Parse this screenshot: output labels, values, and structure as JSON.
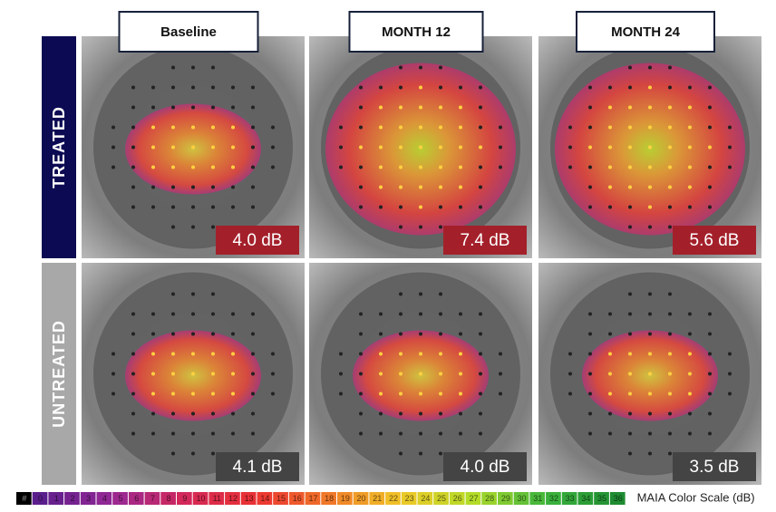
{
  "columns": [
    "Baseline",
    "MONTH 12",
    "MONTH 24"
  ],
  "rows": [
    {
      "label": "TREATED",
      "values": [
        "4.0 dB",
        "7.4 dB",
        "5.6 dB"
      ]
    },
    {
      "label": "UNTREATED",
      "values": [
        "4.1 dB",
        "4.0 dB",
        "3.5 dB"
      ]
    }
  ],
  "color_scale": {
    "labels": [
      "#",
      "0",
      "1",
      "2",
      "3",
      "4",
      "5",
      "6",
      "7",
      "8",
      "9",
      "10",
      "11",
      "12",
      "13",
      "14",
      "15",
      "16",
      "17",
      "18",
      "19",
      "20",
      "21",
      "22",
      "23",
      "24",
      "25",
      "26",
      "27",
      "28",
      "29",
      "30",
      "31",
      "32",
      "33",
      "34",
      "35",
      "36"
    ],
    "title": "MAIA Color Scale (dB)"
  }
}
